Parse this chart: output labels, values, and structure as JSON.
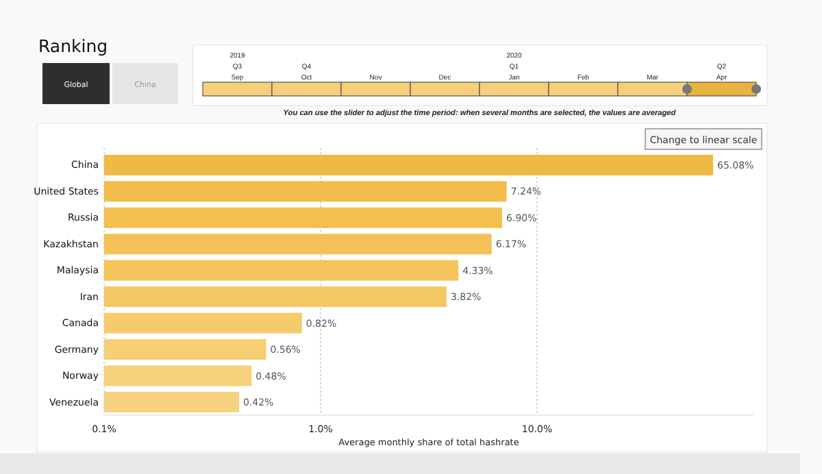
{
  "chart_data": {
    "type": "bar",
    "orientation": "horizontal",
    "title": "Ranking",
    "xlabel": "Average monthly share of total hashrate",
    "categories": [
      "China",
      "United States",
      "Russia",
      "Kazakhstan",
      "Malaysia",
      "Iran",
      "Canada",
      "Germany",
      "Norway",
      "Venezuela"
    ],
    "values": [
      65.08,
      7.24,
      6.9,
      6.17,
      4.33,
      3.82,
      0.82,
      0.56,
      0.48,
      0.42
    ],
    "colors": [
      "#f0b944",
      "#f2bd4c",
      "#f2bf50",
      "#f3c155",
      "#f4c45d",
      "#f4c762",
      "#f5cb6c",
      "#f6ce74",
      "#f6d07a",
      "#f7d27f"
    ],
    "value_labels": [
      "65.08%",
      "7.24%",
      "6.90%",
      "6.17%",
      "4.33%",
      "3.82%",
      "0.82%",
      "0.56%",
      "0.48%",
      "0.42%"
    ],
    "log": "x",
    "xlim": [
      0.1,
      100
    ],
    "xticks": [
      {
        "value": 0.1,
        "label": "0.1%"
      },
      {
        "value": 1,
        "label": "1.0%"
      },
      {
        "value": 10,
        "label": "10.0%"
      }
    ],
    "grid": "x",
    "annotations": [
      "Global",
      "China",
      "2019",
      "Q3",
      "Sep",
      "Q4",
      "Oct",
      "Nov",
      "Dec",
      "2020",
      "Q1",
      "Jan",
      "Feb",
      "Mar",
      "Q2",
      "Apr",
      "You can use the slider to adjust the time period: when several months are selected, the values are averaged",
      "Change to linear scale"
    ]
  }
}
